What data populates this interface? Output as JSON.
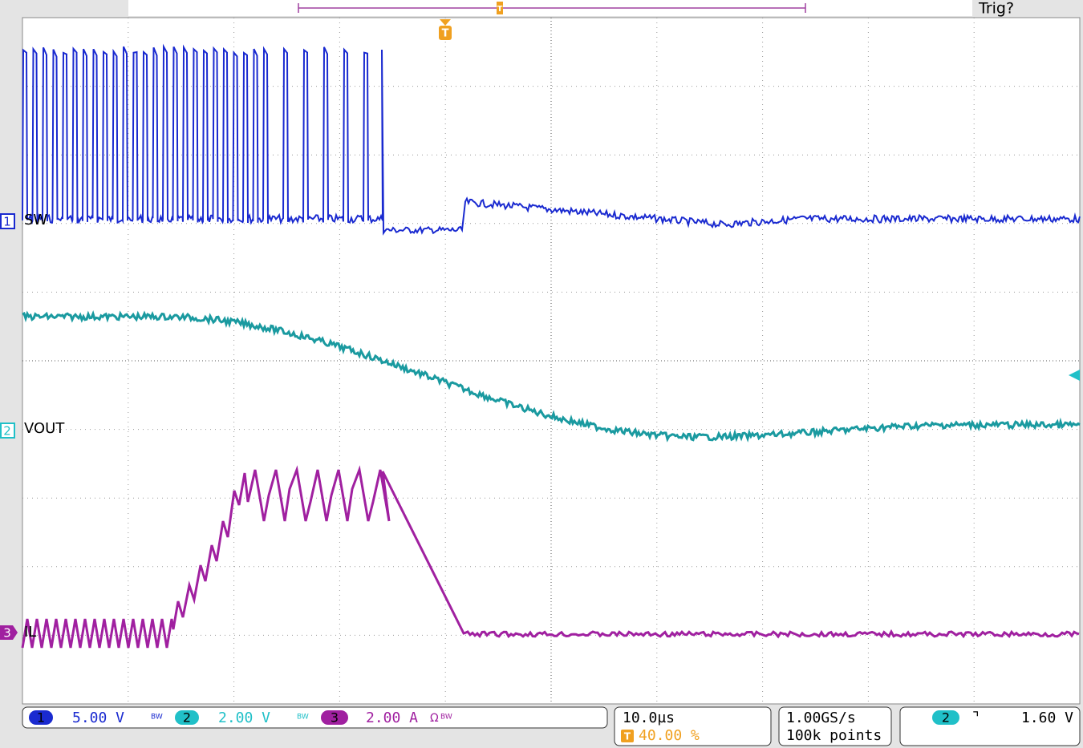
{
  "header": {
    "trigger_status": "Trig?",
    "trigger_marker": "T",
    "trigger_position_marker": "T"
  },
  "channels": [
    {
      "number": "1",
      "label": "SW"
    },
    {
      "number": "2",
      "label": "VOUT"
    },
    {
      "number": "3",
      "label": "IL"
    }
  ],
  "status": {
    "ch1": {
      "number": "1",
      "scale": "5.00 V",
      "bw": "BW"
    },
    "ch2": {
      "number": "2",
      "scale": "2.00 V",
      "bw": "BW"
    },
    "ch3": {
      "number": "3",
      "scale": "2.00 A",
      "impedance": "Ω",
      "bw": "BW"
    },
    "timebase": {
      "scale": "10.0µs",
      "trigger_icon": "T",
      "position": "40.00 %"
    },
    "acquisition": {
      "rate": "1.00GS/s",
      "length": "100k points"
    },
    "trigger": {
      "source": "2",
      "slope": "⌝",
      "level": "1.60 V"
    }
  }
}
